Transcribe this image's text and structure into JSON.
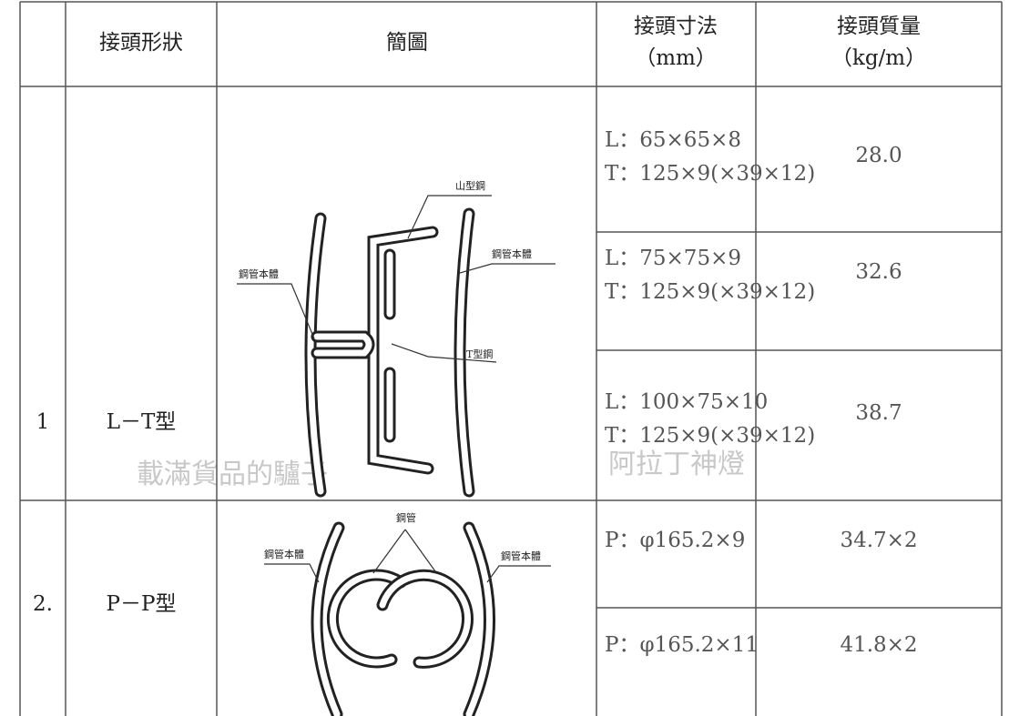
{
  "watermarks": [
    "載滿貨品的驢子",
    "阿拉丁神燈"
  ],
  "header": [
    "接頭形狀",
    "簡圖",
    [
      "接頭寸法",
      "（mm）"
    ],
    [
      "接頭質量",
      "（kg/m）"
    ]
  ],
  "rows": [
    {
      "no": "1",
      "shape": "L－T型",
      "diagram_labels": [
        "山型鋼",
        "鋼管本體",
        "鋼管本體",
        "T型鋼"
      ],
      "specs": [
        {
          "size": [
            "L：65×65×8",
            "T：125×9(×39×12)"
          ],
          "mass": "28.0"
        },
        {
          "size": [
            "L：75×75×9",
            "T：125×9(×39×12)"
          ],
          "mass": "32.6"
        },
        {
          "size": [
            "L：100×75×10",
            "T：125×9(×39×12)"
          ],
          "mass": "38.7"
        }
      ]
    },
    {
      "no": "2.",
      "shape": "P－P型",
      "diagram_labels": [
        "鋼管",
        "鋼管本體",
        "鋼管本體"
      ],
      "specs": [
        {
          "size": [
            "P：φ165.2×9"
          ],
          "mass": "34.7×2"
        },
        {
          "size": [
            "P：φ165.2×11"
          ],
          "mass": "41.8×2"
        }
      ]
    }
  ]
}
